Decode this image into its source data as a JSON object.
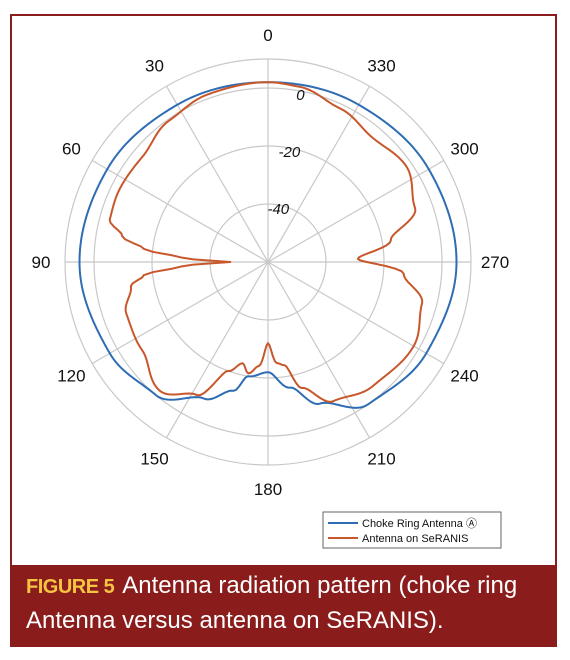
{
  "caption": {
    "label": "FIGURE 5",
    "text": "Antenna radiation pattern (choke ring Antenna versus antenna on SeRANIS)."
  },
  "chart_data": {
    "type": "polar-line",
    "angular_ticks": [
      "0",
      "30",
      "60",
      "90",
      "120",
      "150",
      "180",
      "210",
      "240",
      "270",
      "300",
      "330"
    ],
    "angular_direction": "counterclockwise",
    "zero_location": "top",
    "radial_ticks": [
      0,
      -20,
      -40
    ],
    "radial_range": [
      -60,
      10
    ],
    "grid": true,
    "legend_position": "bottom-right",
    "colors": {
      "choke": "#2e6db4",
      "seranis": "#c8572b",
      "grid": "#c8c8c8"
    },
    "series": [
      {
        "name": "Choke Ring Antenna Ⓐ",
        "angles": [
          0,
          30,
          60,
          90,
          120,
          140,
          155,
          165,
          170,
          180,
          190,
          200,
          215,
          240,
          270,
          300,
          330
        ],
        "values": [
          2,
          2.6,
          4,
          5,
          3,
          0,
          -8,
          -14,
          -20,
          -22,
          -16,
          -8,
          0,
          3,
          5,
          4,
          2.6
        ]
      },
      {
        "name": "Antenna on SeRANIS",
        "angles": [
          0,
          20,
          35,
          50,
          65,
          75,
          80,
          84,
          87,
          90,
          93,
          96,
          100,
          110,
          125,
          140,
          152,
          160,
          166,
          170,
          175,
          180,
          185,
          189,
          195,
          205,
          220,
          240,
          255,
          265,
          272,
          280,
          290,
          305,
          320,
          335,
          350
        ],
        "values": [
          2,
          1.4,
          -0.5,
          -3.5,
          -3,
          -3.5,
          -9,
          -17,
          -30,
          -47,
          -30,
          -17,
          -12,
          -8,
          -7,
          -2,
          -8,
          -20,
          -24,
          -21,
          -24,
          -32,
          -25,
          -24,
          -15,
          -7,
          -4,
          -2,
          -5,
          -13,
          -29,
          -17,
          -6,
          -2,
          -4,
          -1.5,
          1.4
        ]
      }
    ]
  }
}
